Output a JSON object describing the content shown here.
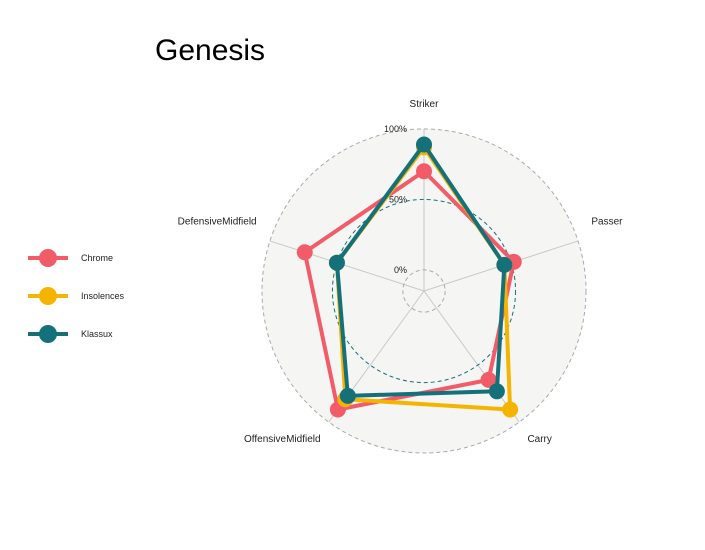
{
  "chart_data": {
    "type": "radar",
    "title": "Genesis",
    "axes": [
      "Striker",
      "Passer",
      "Carry",
      "OffensiveMidfield",
      "DefensiveMidfield"
    ],
    "ticks": [
      {
        "value": 0,
        "label": "0%"
      },
      {
        "value": 50,
        "label": "50%"
      },
      {
        "value": 100,
        "label": "100%"
      }
    ],
    "range": [
      -15,
      100
    ],
    "legend_position": "left",
    "series": [
      {
        "name": "Chrome",
        "color": "#F25C68",
        "values": [
          70,
          52,
          63,
          89,
          74
        ]
      },
      {
        "name": "Insolences",
        "color": "#F5B400",
        "values": [
          87,
          45,
          89,
          80,
          50
        ]
      },
      {
        "name": "Klassux",
        "color": "#14717A",
        "values": [
          89,
          45,
          73,
          77,
          50
        ]
      }
    ]
  }
}
